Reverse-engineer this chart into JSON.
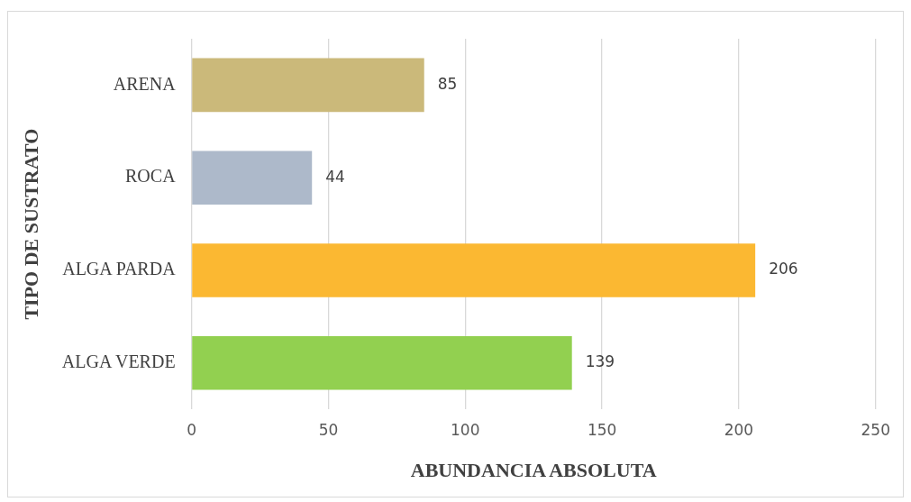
{
  "chart_data": {
    "type": "bar",
    "orientation": "horizontal",
    "xlabel": "ABUNDANCIA ABSOLUTA",
    "ylabel": "TIPO DE SUSTRATO",
    "categories": [
      "ARENA",
      "ROCA",
      "ALGA PARDA",
      "ALGA VERDE"
    ],
    "values": [
      85,
      44,
      206,
      139
    ],
    "colors": [
      "#cbb97a",
      "#adb9ca",
      "#fbb832",
      "#92d050"
    ],
    "xlim": [
      0,
      250
    ],
    "xticks": [
      0,
      50,
      100,
      150,
      200,
      250
    ],
    "grid": "x",
    "data_labels": true,
    "legend": false
  }
}
